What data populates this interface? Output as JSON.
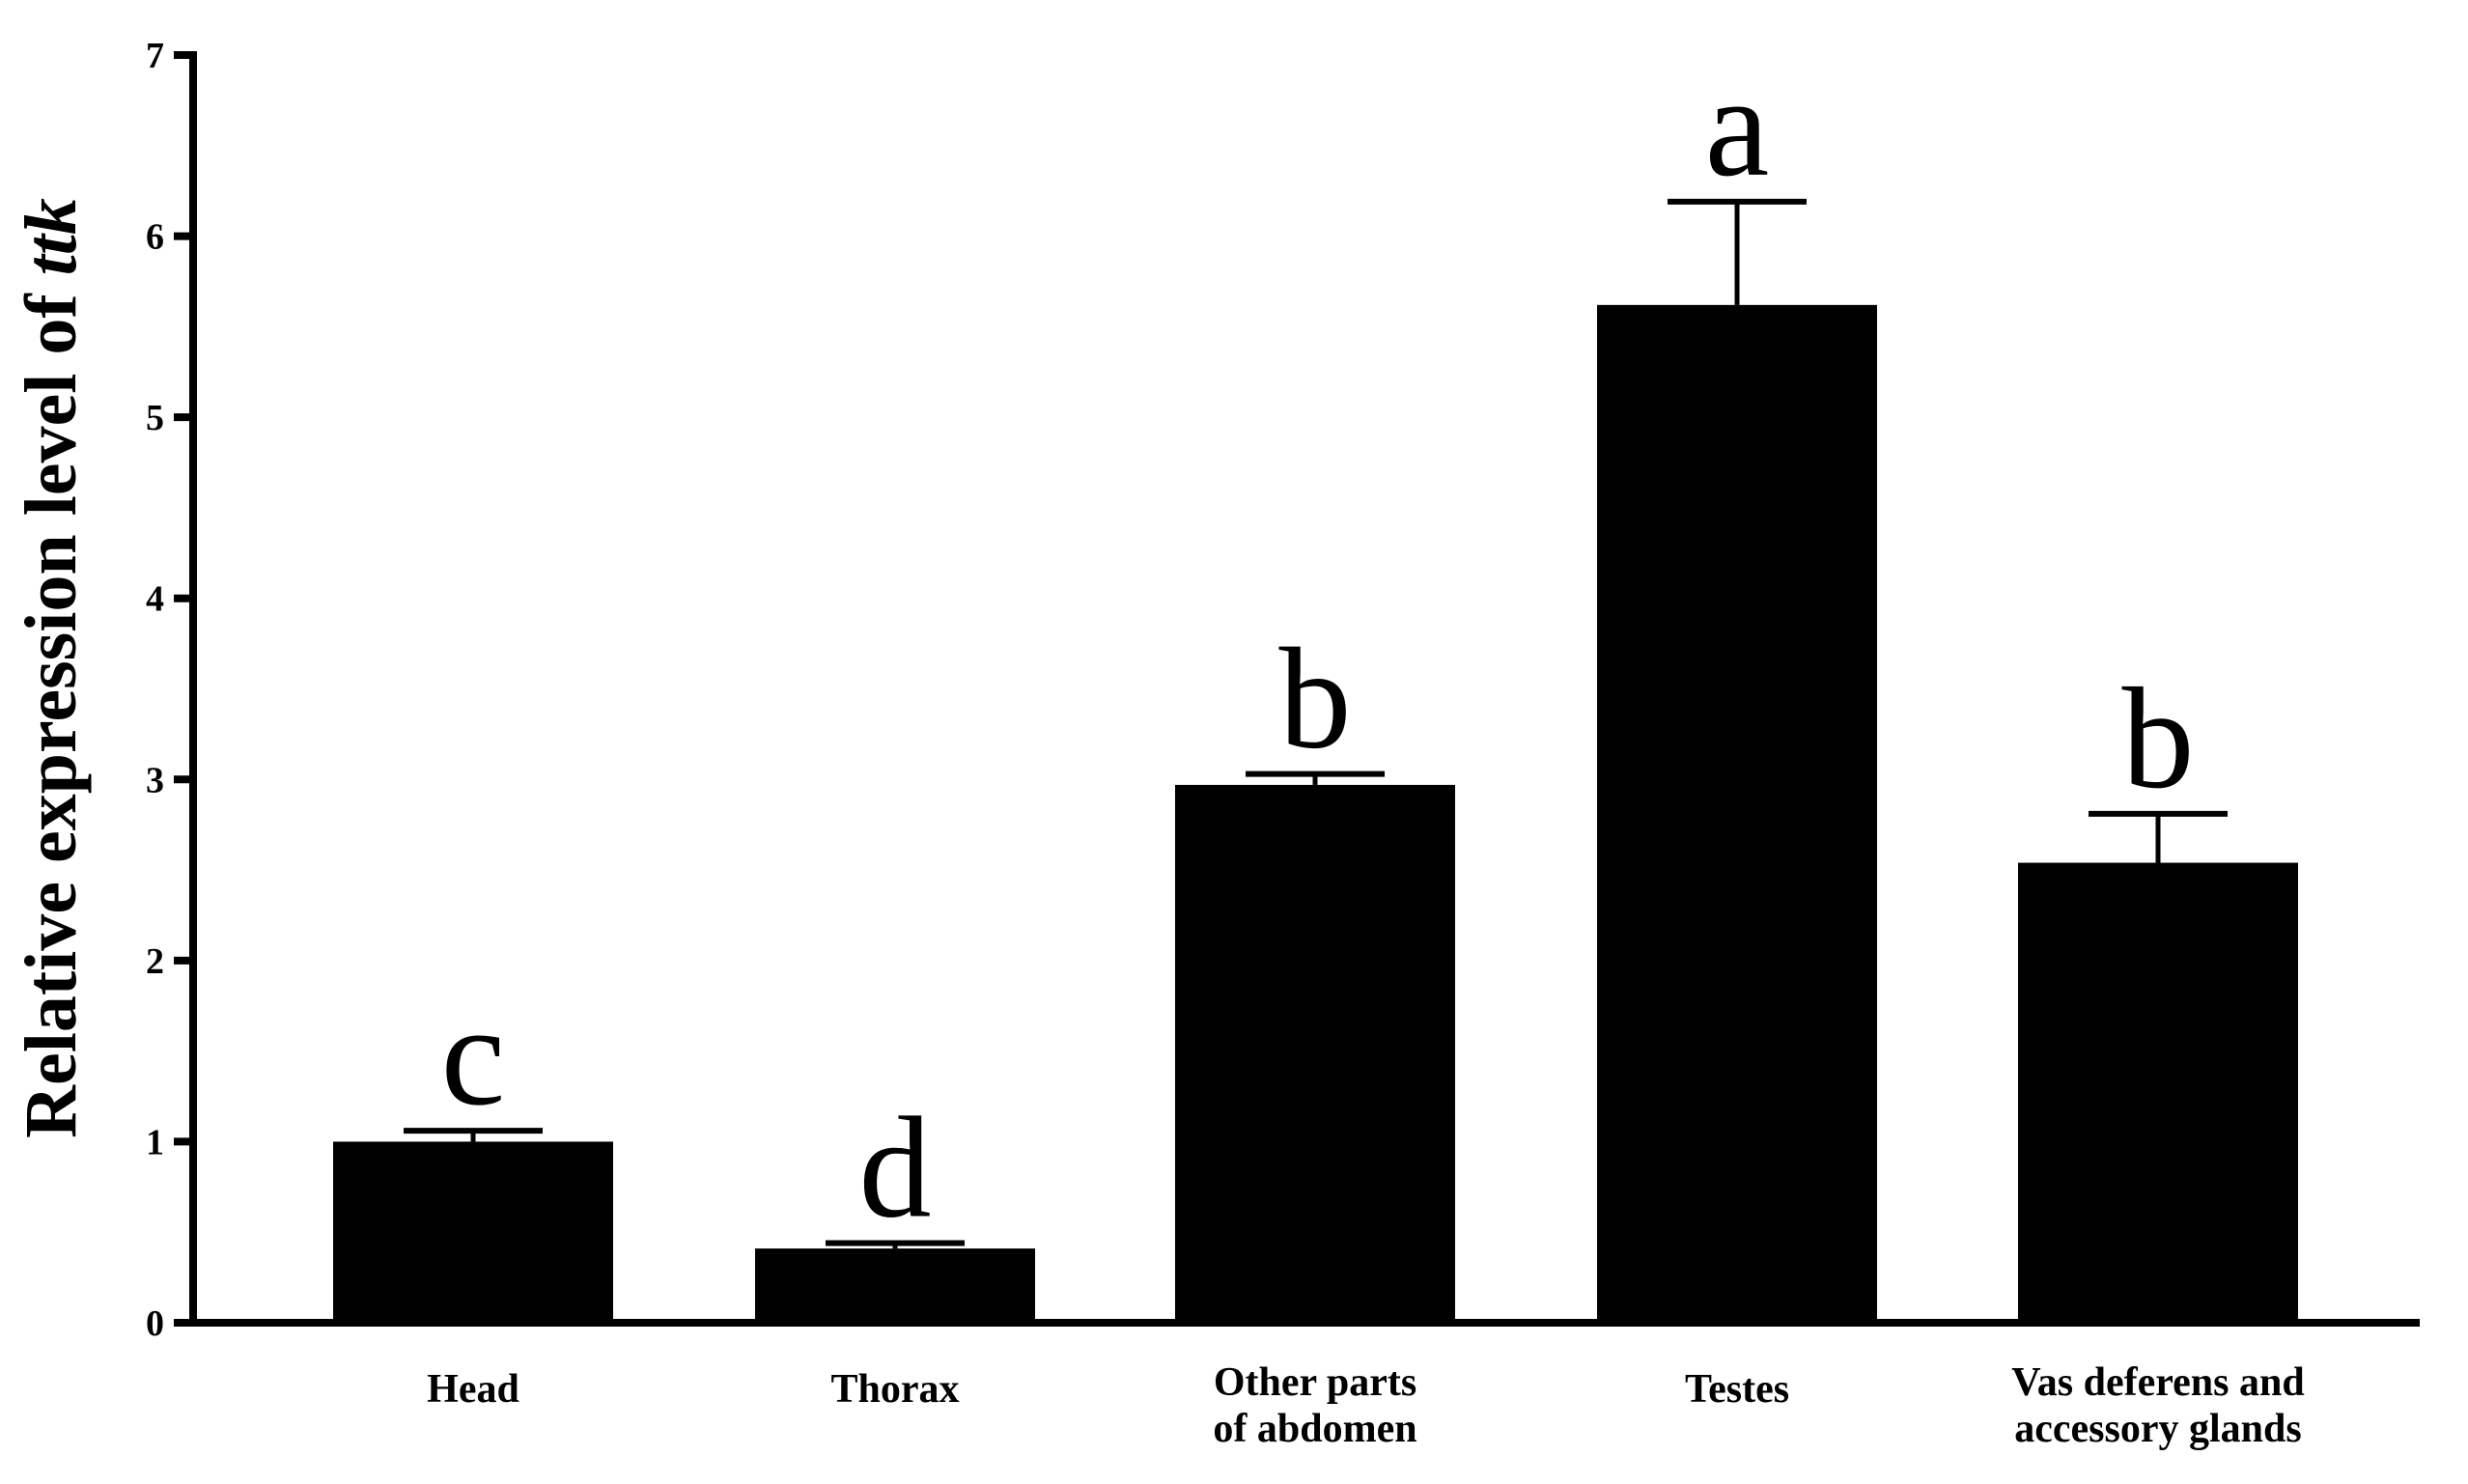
{
  "chart_data": {
    "type": "bar",
    "categories": [
      [
        "Head"
      ],
      [
        "Thorax"
      ],
      [
        "Other parts",
        "of abdomen"
      ],
      [
        "Testes"
      ],
      [
        "Vas deferens and",
        "accessory glands"
      ]
    ],
    "values": [
      1.0,
      0.41,
      2.97,
      5.62,
      2.54
    ],
    "errors": [
      0.06,
      0.03,
      0.06,
      0.57,
      0.27
    ],
    "significance": [
      "c",
      "d",
      "b",
      "a",
      "b"
    ],
    "ylabel_prefix": "Relative expression level of ",
    "ylabel_gene": "ttk",
    "ylim": [
      0,
      7
    ],
    "yticks": [
      "0",
      "1",
      "2",
      "3",
      "4",
      "5",
      "6",
      "7"
    ],
    "grid": false,
    "legend": "none",
    "colors": {
      "bar": "#000000",
      "axis": "#000000",
      "text": "#000000",
      "background": "#ffffff"
    }
  }
}
